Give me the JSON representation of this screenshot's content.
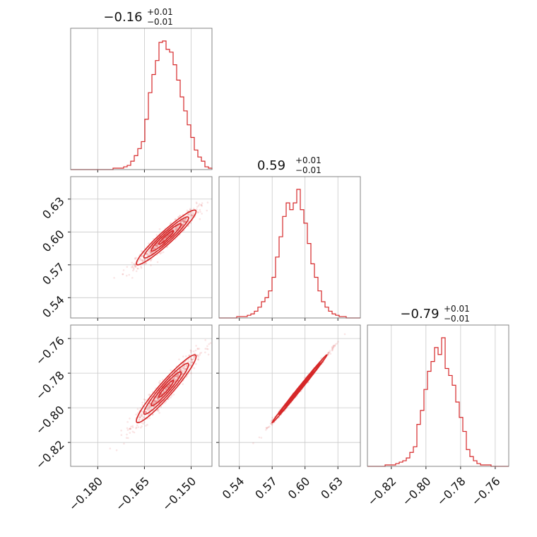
{
  "chart_data": {
    "type": "corner",
    "parameters": [
      {
        "title_main": "−0.16",
        "title_plus": "+0.01",
        "title_minus": "−0.01",
        "range": [
          -0.1887,
          -0.1433
        ],
        "ticks": [
          -0.18,
          -0.165,
          -0.15
        ],
        "tick_labels": [
          "−0.180",
          "−0.165",
          "−0.150"
        ],
        "hist": [
          0,
          0,
          0,
          0,
          0,
          0,
          0,
          0,
          0,
          0,
          0,
          0,
          1,
          1,
          1,
          2,
          3,
          6,
          10,
          15,
          20,
          36,
          55,
          68,
          78,
          91,
          92,
          86,
          84,
          75,
          64,
          52,
          42,
          32,
          23,
          14,
          9,
          6,
          2,
          1
        ]
      },
      {
        "title_main": "0.59",
        "title_plus": "+0.01",
        "title_minus": "−0.01",
        "range": [
          0.5215,
          0.6505
        ],
        "ticks": [
          0.54,
          0.57,
          0.6,
          0.63
        ],
        "tick_labels": [
          "0.54",
          "0.57",
          "0.60",
          "0.63"
        ],
        "hist": [
          0,
          0,
          0,
          0,
          0,
          1,
          1,
          1,
          2,
          3,
          5,
          8,
          12,
          15,
          20,
          30,
          45,
          60,
          75,
          85,
          80,
          85,
          95,
          80,
          70,
          55,
          40,
          30,
          20,
          12,
          8,
          5,
          3,
          2,
          1,
          1,
          0,
          0,
          0,
          0
        ]
      },
      {
        "title_main": "−0.79",
        "title_plus": "+0.01",
        "title_minus": "−0.01",
        "range": [
          -0.8338,
          -0.7522
        ],
        "ticks": [
          -0.82,
          -0.8,
          -0.78,
          -0.76
        ],
        "tick_labels": [
          "−0.82",
          "−0.80",
          "−0.78",
          "−0.76"
        ],
        "hist": [
          0,
          0,
          0,
          0,
          0,
          1,
          1,
          1,
          2,
          3,
          4,
          6,
          10,
          14,
          30,
          40,
          55,
          68,
          75,
          85,
          80,
          92,
          70,
          65,
          58,
          46,
          35,
          25,
          12,
          7,
          4,
          2,
          1,
          1,
          1,
          0,
          0,
          0,
          0,
          0
        ]
      }
    ],
    "pairs": [
      {
        "x_param": 0,
        "y_param": 1,
        "mean": [
          -0.158,
          0.595
        ],
        "corr": 0.95
      },
      {
        "x_param": 0,
        "y_param": 2,
        "mean": [
          -0.158,
          -0.789
        ],
        "corr": 0.95
      },
      {
        "x_param": 1,
        "y_param": 2,
        "mean": [
          0.595,
          -0.789
        ],
        "corr": 0.997
      }
    ],
    "colors": {
      "series": "#d62728",
      "grid": "#c8c8c8",
      "frame": "#777777"
    },
    "grid": true
  }
}
